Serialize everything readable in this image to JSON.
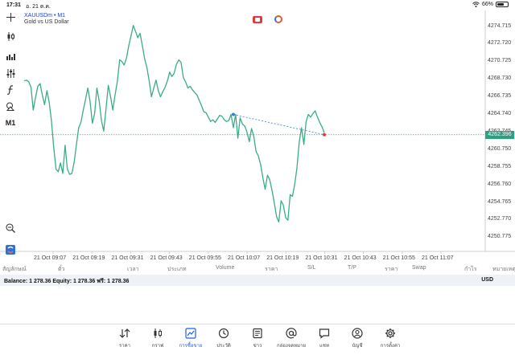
{
  "status_bar": {
    "time": "17:31",
    "date": "อ. 21 ต.ค.",
    "battery": "66%",
    "battery_level": 0.66
  },
  "chart": {
    "symbol": "XAUUSDm • M1",
    "description": "Gold vs US Dollar",
    "current_price": "4262.396",
    "price_ticks": [
      "4274.715",
      "4272.720",
      "4270.725",
      "4268.730",
      "4266.735",
      "4264.740",
      "4262.745",
      "4260.750",
      "4258.755",
      "4256.760",
      "4254.765",
      "4252.770",
      "4250.775"
    ],
    "time_ticks": [
      "21 Oct 09:07",
      "21 Oct 09:19",
      "21 Oct 09:31",
      "21 Oct 09:43",
      "21 Oct 09:55",
      "21 Oct 10:07",
      "21 Oct 10:19",
      "21 Oct 10:31",
      "21 Oct 10:43",
      "21 Oct 10:55",
      "21 Oct 11:07"
    ],
    "series_color": "#3aad86",
    "trendline_color": "#2f7fe0"
  },
  "chart_data": {
    "type": "line",
    "xlabel": "",
    "ylabel": "",
    "ylim": [
      4249.8,
      4276.5
    ],
    "grid": false,
    "values": [
      4268.5,
      4268.6,
      4268.4,
      4267.8,
      4265.2,
      4266.6,
      4267.9,
      4268.2,
      4266.9,
      4265.8,
      4267.4,
      4266.1,
      4264.0,
      4261.0,
      4258.5,
      4258.2,
      4259.2,
      4258.0,
      4261.2,
      4258.5,
      4257.9,
      4258.0,
      4259.3,
      4261.3,
      4263.2,
      4263.8,
      4265.2,
      4266.4,
      4267.7,
      4266.2,
      4263.7,
      4264.8,
      4267.7,
      4266.2,
      4264.0,
      4262.8,
      4265.3,
      4268.0,
      4266.7,
      4265.2,
      4266.9,
      4268.5,
      4270.9,
      4270.7,
      4270.3,
      4271.1,
      4272.5,
      4273.6,
      4274.8,
      4274.1,
      4273.4,
      4273.9,
      4272.5,
      4271.0,
      4270.0,
      4268.5,
      4266.7,
      4267.7,
      4268.6,
      4267.4,
      4266.7,
      4267.3,
      4267.8,
      4268.5,
      4269.5,
      4269.0,
      4269.4,
      4270.4,
      4270.9,
      4270.6,
      4268.9,
      4268.4,
      4267.7,
      4267.9,
      4267.5,
      4267.2,
      4266.9,
      4266.3,
      4265.7,
      4265.0,
      4264.9,
      4264.4,
      4263.9,
      4264.1,
      4263.8,
      4264.2,
      4264.6,
      4264.5,
      4264.1,
      4263.9,
      4264.0,
      4264.7,
      4263.2,
      4264.7,
      4262.0,
      4264.3,
      4263.6,
      4263.4,
      4262.7,
      4261.6,
      4263.1,
      4262.2,
      4260.5,
      4260.0,
      4259.0,
      4257.5,
      4256.2,
      4257.8,
      4257.3,
      4256.1,
      4254.7,
      4253.1,
      4252.5,
      4254.9,
      4254.4,
      4253.0,
      4252.7,
      4255.6,
      4255.4,
      4256.8,
      4258.7,
      4261.6,
      4263.2,
      4261.3,
      4263.9,
      4264.7,
      4264.4,
      4264.8,
      4265.1,
      4264.4,
      4263.8,
      4263.3,
      4262.6
    ],
    "trendline": {
      "from": 4264.7,
      "to": 4262.4
    }
  },
  "table_header": [
    "สัญลักษณ์",
    "ตั๋ว",
    "เวลา",
    "ประเภท",
    "Volume",
    "ราคา",
    "S/L",
    "T/P",
    "ราคา",
    "Swap",
    "กำไร",
    "หมายเหตุ"
  ],
  "balance": {
    "text": "Balance: 1 278.36 Equity: 1 278.36 ฟรี: 1 278.36",
    "currency": "USD"
  },
  "nav": [
    {
      "label": "ราคา",
      "icon": "quotes-arrows-icon"
    },
    {
      "label": "กราฟ",
      "icon": "candlestick-icon"
    },
    {
      "label": "การซื้อขาย",
      "icon": "trade-chart-icon"
    },
    {
      "label": "ประวัติ",
      "icon": "history-clock-icon"
    },
    {
      "label": "ข่าว",
      "icon": "news-icon"
    },
    {
      "label": "กล่องจดหมาย",
      "icon": "mailbox-at-icon"
    },
    {
      "label": "แชท",
      "icon": "chat-bubble-icon"
    },
    {
      "label": "บัญชี",
      "icon": "account-user-icon"
    },
    {
      "label": "การตั้งค่า",
      "icon": "settings-gear-icon"
    }
  ],
  "colors": {
    "accent": "#1f63d8",
    "series": "#3aad86",
    "price_tag": "#2e9f80"
  }
}
